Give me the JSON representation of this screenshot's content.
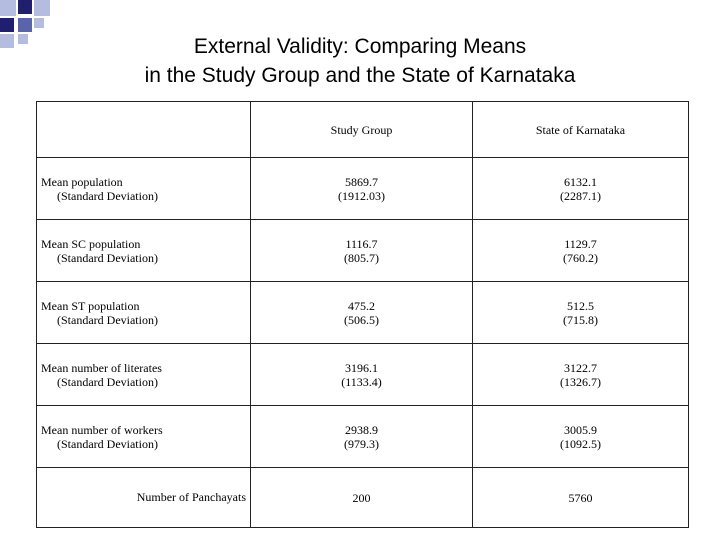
{
  "title": {
    "line1": "External Validity: Comparing Means",
    "line2": "in the Study Group and the State of Karnataka"
  },
  "table": {
    "headers": [
      "",
      "Study Group",
      "State of Karnataka"
    ],
    "rows": [
      {
        "label": "Mean population",
        "sub": "(Standard Deviation)",
        "study": "5869.7",
        "study_sd": "(1912.03)",
        "state": "6132.1",
        "state_sd": "(2287.1)"
      },
      {
        "label": "Mean SC population",
        "sub": "(Standard Deviation)",
        "study": "1116.7",
        "study_sd": "(805.7)",
        "state": "1129.7",
        "state_sd": "(760.2)"
      },
      {
        "label": "Mean ST population",
        "sub": "(Standard Deviation)",
        "study": "475.2",
        "study_sd": "(506.5)",
        "state": "512.5",
        "state_sd": "(715.8)"
      },
      {
        "label": "Mean number of literates",
        "sub": "(Standard Deviation)",
        "study": "3196.1",
        "study_sd": "(1133.4)",
        "state": "3122.7",
        "state_sd": "(1326.7)"
      },
      {
        "label": "Mean number of workers",
        "sub": "(Standard Deviation)",
        "study": "2938.9",
        "study_sd": "(979.3)",
        "state": "3005.9",
        "state_sd": "(1092.5)"
      }
    ],
    "panchayats": {
      "label": "Number of Panchayats",
      "study": "200",
      "state": "5760"
    }
  }
}
